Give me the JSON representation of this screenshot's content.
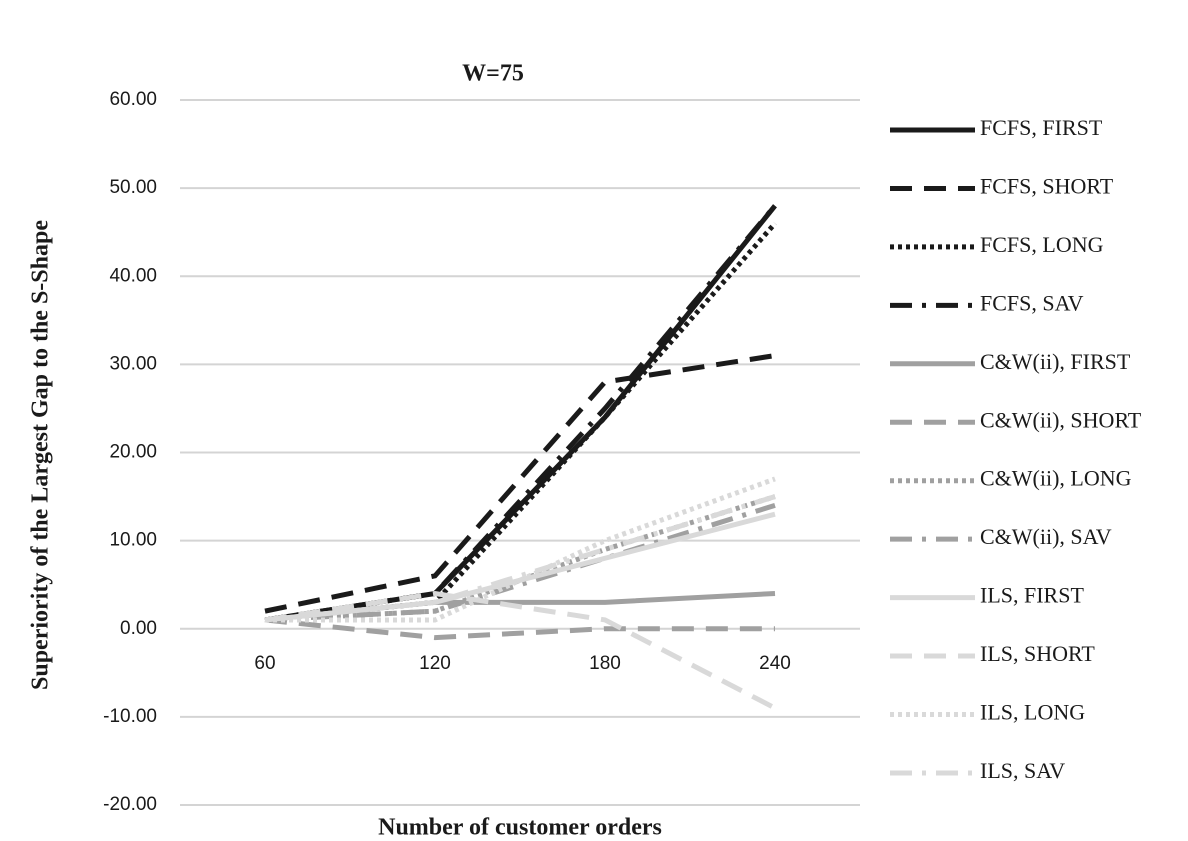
{
  "chart_data": {
    "type": "line",
    "title": "W=75",
    "x_label": "Number of customer orders",
    "y_label": "Superiority of the Largest Gap to the S-Shape",
    "categories": [
      "60",
      "120",
      "180",
      "240"
    ],
    "ylim": [
      -20,
      60
    ],
    "yticks": [
      {
        "value": -20,
        "label": "-20.00"
      },
      {
        "value": -10,
        "label": "-10.00"
      },
      {
        "value": 0,
        "label": "0.00"
      },
      {
        "value": 10,
        "label": "10.00"
      },
      {
        "value": 20,
        "label": "20.00"
      },
      {
        "value": 30,
        "label": "30.00"
      },
      {
        "value": 40,
        "label": "40.00"
      },
      {
        "value": 50,
        "label": "50.00"
      },
      {
        "value": 60,
        "label": "60.00"
      }
    ],
    "grid": true,
    "legend": "right",
    "series": [
      {
        "name": "FCFS, FIRST",
        "color": "#1a1a1a",
        "dash": "solid",
        "values": [
          1,
          4,
          24,
          48
        ]
      },
      {
        "name": "FCFS, SHORT",
        "color": "#1a1a1a",
        "dash": "dash",
        "values": [
          2,
          6,
          28,
          31
        ]
      },
      {
        "name": "FCFS, LONG",
        "color": "#1a1a1a",
        "dash": "dot",
        "values": [
          1,
          3,
          24,
          46
        ]
      },
      {
        "name": "FCFS, SAV",
        "color": "#1a1a1a",
        "dash": "dashdot",
        "values": [
          1,
          4,
          25,
          48
        ]
      },
      {
        "name": "C&W(ii), FIRST",
        "color": "#a0a0a0",
        "dash": "solid",
        "values": [
          1,
          3,
          3,
          4
        ]
      },
      {
        "name": "C&W(ii), SHORT",
        "color": "#a0a0a0",
        "dash": "dash",
        "values": [
          1,
          -1,
          0,
          0
        ]
      },
      {
        "name": "C&W(ii), LONG",
        "color": "#a0a0a0",
        "dash": "dot",
        "values": [
          1,
          2,
          9,
          15
        ]
      },
      {
        "name": "C&W(ii), SAV",
        "color": "#a0a0a0",
        "dash": "dashdot",
        "values": [
          1,
          2,
          8,
          14
        ]
      },
      {
        "name": "ILS, FIRST",
        "color": "#d9d9d9",
        "dash": "solid",
        "values": [
          1,
          3,
          8,
          13
        ]
      },
      {
        "name": "ILS, SHORT",
        "color": "#d9d9d9",
        "dash": "dash",
        "values": [
          1,
          4,
          1,
          -9
        ]
      },
      {
        "name": "ILS, LONG",
        "color": "#d9d9d9",
        "dash": "dot",
        "values": [
          1,
          1,
          10,
          17
        ]
      },
      {
        "name": "ILS, SAV",
        "color": "#d9d9d9",
        "dash": "dashdot",
        "values": [
          1,
          3,
          9,
          15
        ]
      }
    ]
  }
}
